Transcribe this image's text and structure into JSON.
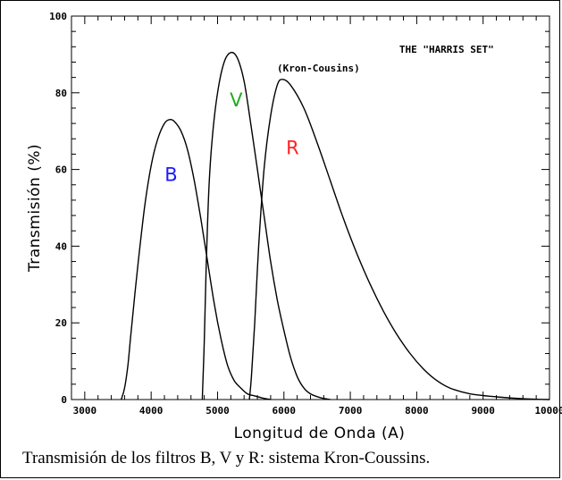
{
  "chart_data": {
    "type": "line",
    "xlabel": "Longitud de Onda (A)",
    "ylabel": "Transmisión (%)",
    "xlim": [
      2800,
      10000
    ],
    "ylim": [
      0,
      100
    ],
    "x_ticks": [
      3000,
      4000,
      5000,
      6000,
      7000,
      8000,
      9000,
      10000
    ],
    "y_ticks": [
      0,
      20,
      40,
      60,
      80,
      100
    ],
    "grid": false,
    "annotations": [
      {
        "text": "THE \"HARRIS SET\"",
        "x": 8450,
        "y": 90.5
      },
      {
        "text": "(Kron-Cousins)",
        "x": 6520,
        "y": 85.5
      }
    ],
    "series": [
      {
        "name": "B",
        "color": "#1a1aff",
        "label_at": [
          4300,
          57
        ],
        "points": [
          [
            3550,
            0
          ],
          [
            3600,
            3
          ],
          [
            3650,
            9
          ],
          [
            3700,
            18
          ],
          [
            3800,
            35
          ],
          [
            3900,
            50
          ],
          [
            4000,
            61
          ],
          [
            4100,
            68
          ],
          [
            4200,
            72
          ],
          [
            4280,
            73
          ],
          [
            4350,
            72.5
          ],
          [
            4450,
            70
          ],
          [
            4550,
            65
          ],
          [
            4650,
            57
          ],
          [
            4750,
            47
          ],
          [
            4850,
            36
          ],
          [
            4950,
            25
          ],
          [
            5050,
            16
          ],
          [
            5150,
            9
          ],
          [
            5250,
            5
          ],
          [
            5350,
            3
          ],
          [
            5450,
            1.5
          ],
          [
            5550,
            1
          ],
          [
            5700,
            0.3
          ],
          [
            5800,
            0
          ]
        ]
      },
      {
        "name": "V",
        "color": "#22aa22",
        "label_at": [
          5280,
          76.5
        ],
        "points": [
          [
            4770,
            0
          ],
          [
            4800,
            15
          ],
          [
            4830,
            35
          ],
          [
            4870,
            55
          ],
          [
            4920,
            68
          ],
          [
            5000,
            80
          ],
          [
            5100,
            88
          ],
          [
            5200,
            90.5
          ],
          [
            5300,
            89
          ],
          [
            5400,
            83
          ],
          [
            5500,
            72
          ],
          [
            5600,
            60
          ],
          [
            5700,
            48
          ],
          [
            5800,
            36
          ],
          [
            5900,
            26
          ],
          [
            6000,
            18
          ],
          [
            6100,
            11
          ],
          [
            6200,
            6
          ],
          [
            6300,
            3
          ],
          [
            6400,
            1.5
          ],
          [
            6550,
            0.5
          ],
          [
            6700,
            0
          ]
        ]
      },
      {
        "name": "R",
        "color": "#ff2222",
        "label_at": [
          6130,
          64
        ],
        "points": [
          [
            5480,
            0
          ],
          [
            5510,
            6
          ],
          [
            5560,
            20
          ],
          [
            5620,
            40
          ],
          [
            5700,
            60
          ],
          [
            5800,
            74
          ],
          [
            5900,
            82
          ],
          [
            5980,
            83.5
          ],
          [
            6100,
            82
          ],
          [
            6300,
            76
          ],
          [
            6500,
            67
          ],
          [
            6700,
            57
          ],
          [
            6900,
            47
          ],
          [
            7100,
            38
          ],
          [
            7300,
            30
          ],
          [
            7500,
            23
          ],
          [
            7700,
            17
          ],
          [
            7900,
            12
          ],
          [
            8100,
            8
          ],
          [
            8300,
            5
          ],
          [
            8500,
            3
          ],
          [
            8800,
            1.5
          ],
          [
            9200,
            0.7
          ],
          [
            9600,
            0.2
          ],
          [
            10000,
            0
          ]
        ]
      }
    ]
  },
  "caption": "Transmisión de los filtros B, V y R: sistema Kron-Coussins."
}
